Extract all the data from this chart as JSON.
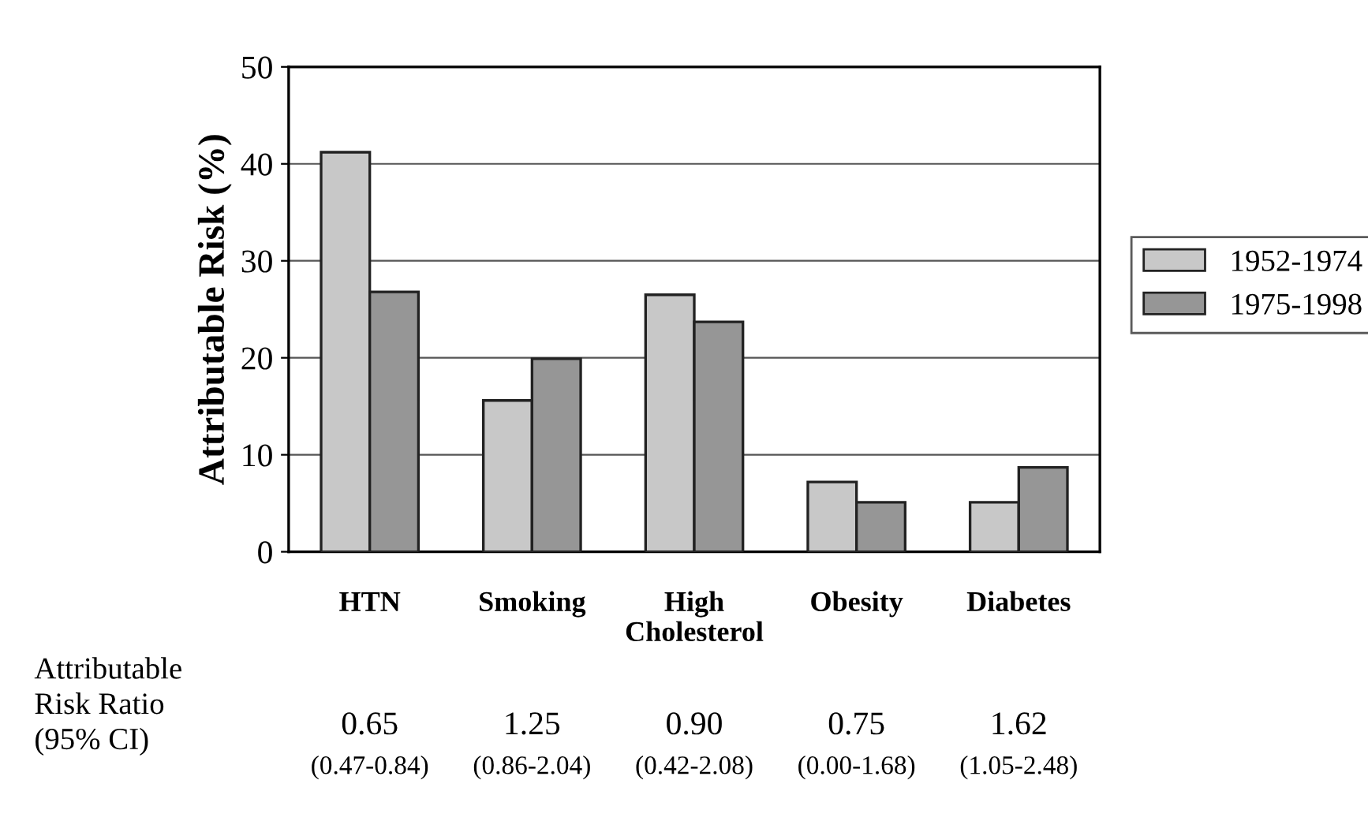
{
  "chart_data": {
    "type": "bar",
    "ylabel": "Attributable Risk (%)",
    "categories": [
      "HTN",
      "Smoking",
      "High\nCholesterol",
      "Obesity",
      "Diabetes"
    ],
    "series": [
      {
        "name": "1952-1974",
        "color": "#c8c8c8",
        "values": [
          41.2,
          15.6,
          26.5,
          7.2,
          5.1
        ]
      },
      {
        "name": "1975-1998",
        "color": "#969696",
        "values": [
          26.8,
          19.9,
          23.7,
          5.1,
          8.7
        ]
      }
    ],
    "ylim": [
      0,
      50
    ],
    "yticks": [
      0,
      10,
      20,
      30,
      40,
      50
    ],
    "grid": "y",
    "legend": "right",
    "annotations": [
      "Attributable\nRisk Ratio\n(95% CI)",
      "0.65\n(0.47-0.84)",
      "1.25\n(0.86-2.04)",
      "0.90\n(0.42-2.08)",
      "0.75\n(0.00-1.68)",
      "1.62\n(1.05-2.48)"
    ]
  }
}
